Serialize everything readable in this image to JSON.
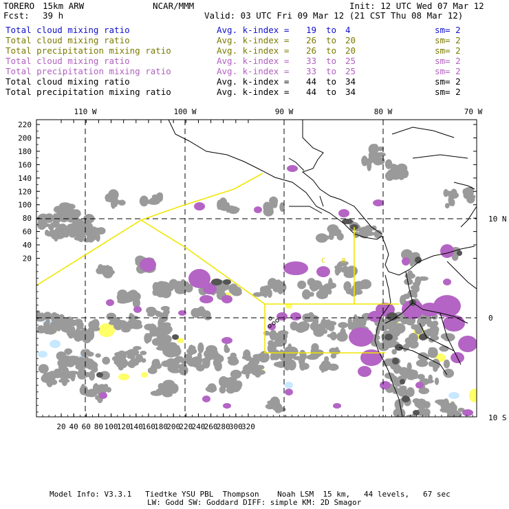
{
  "header": {
    "model": "TORERO",
    "resolution": "15km ARW",
    "center": "NCAR/MMM",
    "init": "Init: 12 UTC Wed 07 Mar 12",
    "fcst_label": "Fcst:",
    "fcst_value": "39 h",
    "valid": "Valid: 03 UTC Fri 09 Mar 12 (21 CST Thu 08 Mar 12)"
  },
  "legend": [
    {
      "field": "Total cloud mixing ratio",
      "stat": "Avg. k-index =",
      "from": "19",
      "to_word": "to",
      "to": "4",
      "sm": "sm= 2",
      "color": "#1010cc"
    },
    {
      "field": "Total cloud mixing ratio",
      "stat": "Avg. k-index =",
      "from": "26",
      "to_word": "to",
      "to": "20",
      "sm": "sm= 2",
      "color": "#7a7a00"
    },
    {
      "field": "Total precipitation mixing ratio",
      "stat": "Avg. k-index =",
      "from": "26",
      "to_word": "to",
      "to": "20",
      "sm": "sm= 2",
      "color": "#7a7a00"
    },
    {
      "field": "Total cloud mixing ratio",
      "stat": "Avg. k-index =",
      "from": "33",
      "to_word": "to",
      "to": "25",
      "sm": "sm= 2",
      "color": "#b060c0"
    },
    {
      "field": "Total precipitation mixing ratio",
      "stat": "Avg. k-index =",
      "from": "33",
      "to_word": "to",
      "to": "25",
      "sm": "sm= 2",
      "color": "#b060c0"
    },
    {
      "field": "Total cloud mixing ratio",
      "stat": "Avg. k-index =",
      "from": "44",
      "to_word": "to",
      "to": "34",
      "sm": "sm= 2",
      "color": "#000000"
    },
    {
      "field": "Total precipitation mixing ratio",
      "stat": "Avg. k-index =",
      "from": "44",
      "to_word": "to",
      "to": "34",
      "sm": "sm= 2",
      "color": "#000000"
    }
  ],
  "map": {
    "lon_labels": [
      "110 W",
      "100 W",
      "90 W",
      "80 W",
      "70 W"
    ],
    "lat_labels": [
      "10 N",
      "0",
      "10 S"
    ],
    "y_ticks": [
      "220",
      "200",
      "180",
      "160",
      "140",
      "120",
      "100",
      "80",
      "60",
      "40",
      "20"
    ],
    "x_ticks": [
      "20",
      "40",
      "60",
      "80",
      "100",
      "120",
      "140",
      "160",
      "180",
      "200",
      "220",
      "240",
      "260",
      "280",
      "300",
      "320"
    ],
    "region_labels": [
      "C",
      "R"
    ],
    "colors": {
      "cloud_gray": "#9a9a9a",
      "cloud_dark": "#555555",
      "magenta": "#b464c4",
      "yellow": "#ffff66",
      "light_blue": "#c8e8ff",
      "boundary": "#f0e600"
    }
  },
  "footer": {
    "line1": "Model Info: V3.3.1   Tiedtke YSU PBL  Thompson    Noah LSM  15 km,   44 levels,   67 sec",
    "line2": "LW: Godd SW: Goddard DIFF: simple KM: 2D Smagor"
  }
}
